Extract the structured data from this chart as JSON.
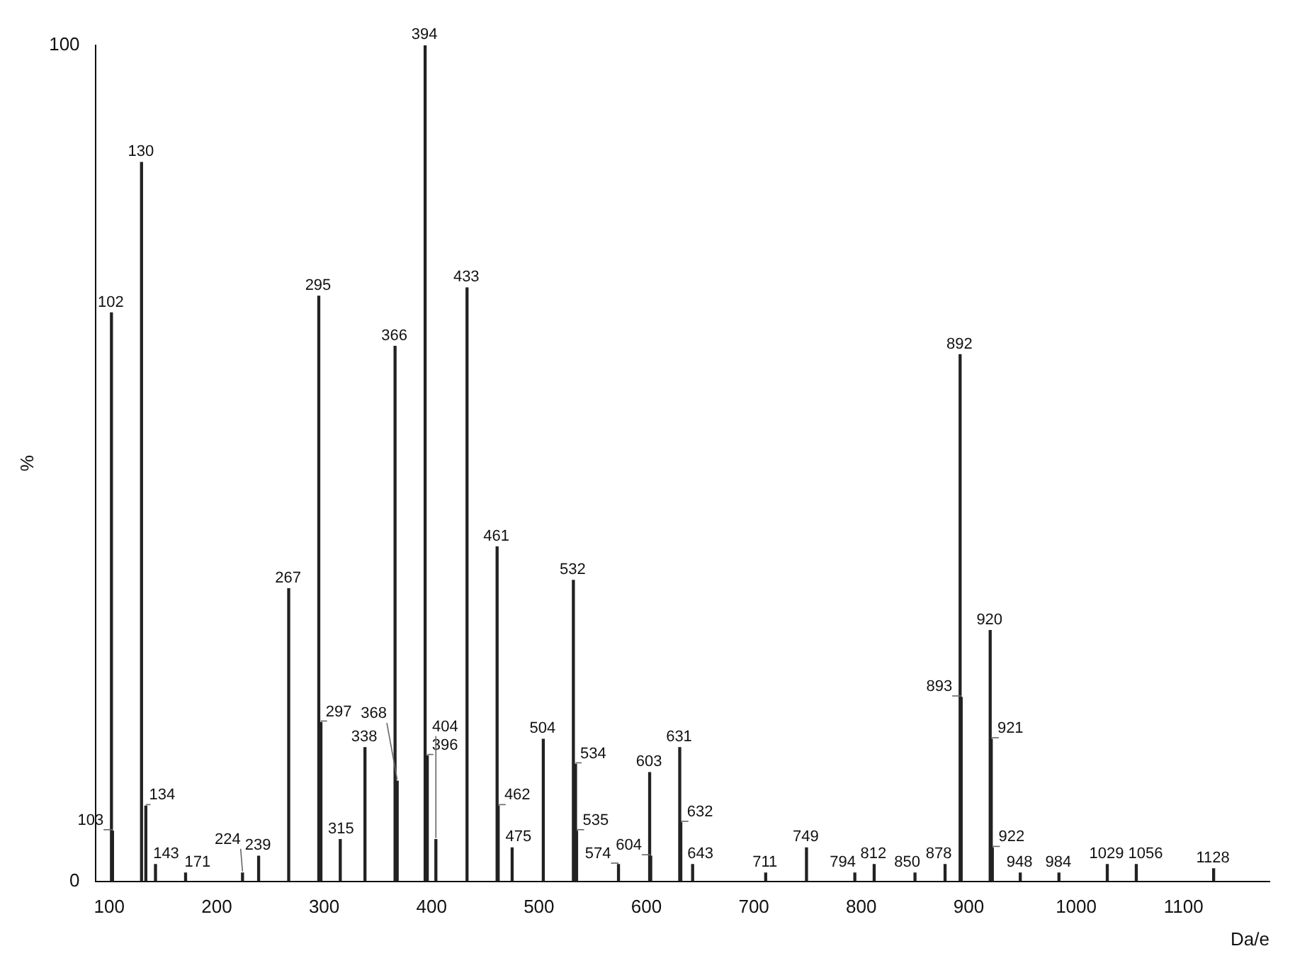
{
  "chart_data": {
    "type": "bar",
    "xlabel": "Da/e",
    "ylabel": "%",
    "xlim": [
      87,
      1180
    ],
    "ylim": [
      0,
      100
    ],
    "xticks": [
      100,
      200,
      300,
      400,
      500,
      600,
      700,
      800,
      900,
      1000,
      1100
    ],
    "yticks": [
      0,
      100
    ],
    "grid": false,
    "legend": false,
    "color": "#222222",
    "x": [
      102,
      103,
      130,
      134,
      143,
      171,
      224,
      239,
      267,
      295,
      297,
      315,
      338,
      366,
      368,
      394,
      396,
      404,
      433,
      461,
      462,
      475,
      504,
      532,
      534,
      535,
      574,
      603,
      604,
      631,
      632,
      643,
      711,
      749,
      794,
      812,
      850,
      878,
      892,
      893,
      920,
      921,
      922,
      948,
      984,
      1029,
      1056,
      1128
    ],
    "values": [
      68,
      6,
      86,
      9,
      2,
      1,
      1,
      3,
      35,
      70,
      19,
      5,
      16,
      64,
      12,
      100,
      15,
      5,
      71,
      40,
      9,
      4,
      17,
      36,
      14,
      6,
      2,
      13,
      3,
      16,
      7,
      2,
      1,
      4,
      1,
      2,
      1,
      2,
      63,
      22,
      30,
      17,
      4,
      1,
      1,
      2,
      2,
      1.5
    ],
    "annotations": [
      {
        "text": "102",
        "x": 102,
        "y": 68
      },
      {
        "text": "103",
        "x": 103,
        "y": 6
      },
      {
        "text": "130",
        "x": 130,
        "y": 86
      },
      {
        "text": "134",
        "x": 134,
        "y": 9
      },
      {
        "text": "143",
        "x": 143,
        "y": 2
      },
      {
        "text": "171",
        "x": 171,
        "y": 1
      },
      {
        "text": "224",
        "x": 224,
        "y": 1
      },
      {
        "text": "239",
        "x": 239,
        "y": 3
      },
      {
        "text": "267",
        "x": 267,
        "y": 35
      },
      {
        "text": "295",
        "x": 295,
        "y": 70
      },
      {
        "text": "297",
        "x": 297,
        "y": 19
      },
      {
        "text": "315",
        "x": 315,
        "y": 5
      },
      {
        "text": "338",
        "x": 338,
        "y": 16
      },
      {
        "text": "366",
        "x": 366,
        "y": 64
      },
      {
        "text": "368",
        "x": 368,
        "y": 12
      },
      {
        "text": "394",
        "x": 394,
        "y": 100
      },
      {
        "text": "396",
        "x": 396,
        "y": 15
      },
      {
        "text": "404",
        "x": 404,
        "y": 5
      },
      {
        "text": "433",
        "x": 433,
        "y": 71
      },
      {
        "text": "461",
        "x": 461,
        "y": 40
      },
      {
        "text": "462",
        "x": 462,
        "y": 9
      },
      {
        "text": "475",
        "x": 475,
        "y": 4
      },
      {
        "text": "504",
        "x": 504,
        "y": 17
      },
      {
        "text": "532",
        "x": 532,
        "y": 36
      },
      {
        "text": "534",
        "x": 534,
        "y": 14
      },
      {
        "text": "535",
        "x": 535,
        "y": 6
      },
      {
        "text": "574",
        "x": 574,
        "y": 2
      },
      {
        "text": "603",
        "x": 603,
        "y": 13
      },
      {
        "text": "604",
        "x": 604,
        "y": 3
      },
      {
        "text": "631",
        "x": 631,
        "y": 16
      },
      {
        "text": "632",
        "x": 632,
        "y": 7
      },
      {
        "text": "643",
        "x": 643,
        "y": 2
      },
      {
        "text": "711",
        "x": 711,
        "y": 1
      },
      {
        "text": "749",
        "x": 749,
        "y": 4
      },
      {
        "text": "794",
        "x": 794,
        "y": 1
      },
      {
        "text": "812",
        "x": 812,
        "y": 2
      },
      {
        "text": "850",
        "x": 850,
        "y": 1
      },
      {
        "text": "878",
        "x": 878,
        "y": 2
      },
      {
        "text": "892",
        "x": 892,
        "y": 63
      },
      {
        "text": "893",
        "x": 893,
        "y": 22
      },
      {
        "text": "920",
        "x": 920,
        "y": 30
      },
      {
        "text": "921",
        "x": 921,
        "y": 17
      },
      {
        "text": "922",
        "x": 922,
        "y": 4
      },
      {
        "text": "948",
        "x": 948,
        "y": 1
      },
      {
        "text": "984",
        "x": 984,
        "y": 1
      },
      {
        "text": "1029",
        "x": 1029,
        "y": 2
      },
      {
        "text": "1056",
        "x": 1056,
        "y": 2
      },
      {
        "text": "1128",
        "x": 1128,
        "y": 1.5
      }
    ]
  }
}
